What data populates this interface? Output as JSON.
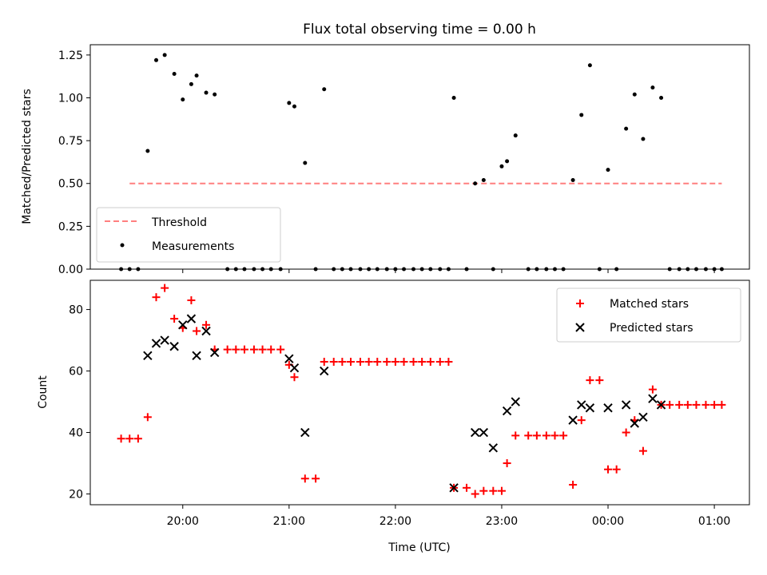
{
  "title": "Flux total observing time = 0.00 h",
  "colors": {
    "threshold": "#ff7f7f",
    "measurement": "#000000",
    "matched": "#ff0000",
    "predicted": "#000000"
  },
  "chart_data": [
    {
      "type": "scatter",
      "name": "ratio",
      "ylabel": "Matched/Predicted stars",
      "xlim": [
        19.13,
        25.33
      ],
      "ylim": [
        0,
        1.31
      ],
      "yticks": [
        0.0,
        0.25,
        0.5,
        0.75,
        1.0,
        1.25
      ],
      "ytick_labels": [
        "0.00",
        "0.25",
        "0.50",
        "0.75",
        "1.00",
        "1.25"
      ],
      "legend": {
        "position": "lower-left",
        "threshold_label": "Threshold",
        "measurements_label": "Measurements"
      },
      "threshold": {
        "value": 0.5,
        "x_range": [
          19.5,
          25.07
        ]
      },
      "series": [
        {
          "name": "Measurements",
          "x": [
            19.42,
            19.5,
            19.58,
            19.67,
            19.75,
            19.83,
            19.92,
            20.0,
            20.08,
            20.13,
            20.22,
            20.3,
            20.42,
            20.5,
            20.58,
            20.67,
            20.75,
            20.83,
            20.92,
            21.0,
            21.05,
            21.15,
            21.25,
            21.33,
            21.42,
            21.5,
            21.58,
            21.67,
            21.75,
            21.83,
            21.92,
            22.0,
            22.08,
            22.17,
            22.25,
            22.33,
            22.42,
            22.5,
            22.55,
            22.67,
            22.75,
            22.83,
            22.92,
            23.0,
            23.05,
            23.13,
            23.25,
            23.33,
            23.42,
            23.5,
            23.58,
            23.67,
            23.75,
            23.83,
            23.92,
            24.0,
            24.08,
            24.17,
            24.25,
            24.33,
            24.42,
            24.5,
            24.58,
            24.67,
            24.75,
            24.83,
            24.92,
            25.0,
            25.07
          ],
          "y": [
            0,
            0,
            0,
            0.69,
            1.22,
            1.25,
            1.14,
            0.99,
            1.08,
            1.13,
            1.03,
            1.02,
            0,
            0,
            0,
            0,
            0,
            0,
            0,
            0.97,
            0.95,
            0.62,
            0,
            1.05,
            0,
            0,
            0,
            0,
            0,
            0,
            0,
            0,
            0,
            0,
            0,
            0,
            0,
            0,
            1.0,
            0,
            0.5,
            0.52,
            0,
            0.6,
            0.63,
            0.78,
            0,
            0,
            0,
            0,
            0,
            0.52,
            0.9,
            1.19,
            0,
            0.58,
            0,
            0.82,
            1.02,
            0.76,
            1.06,
            1.0,
            0,
            0,
            0,
            0,
            0,
            0,
            0
          ]
        }
      ]
    },
    {
      "type": "scatter",
      "name": "counts",
      "xlabel": "Time (UTC)",
      "ylabel": "Count",
      "xlim": [
        19.13,
        25.33
      ],
      "ylim": [
        16.5,
        89.5
      ],
      "yticks": [
        20,
        40,
        60,
        80
      ],
      "ytick_labels": [
        "20",
        "40",
        "60",
        "80"
      ],
      "xticks": [
        20,
        21,
        22,
        23,
        24,
        25
      ],
      "xtick_labels": [
        "20:00",
        "21:00",
        "22:00",
        "23:00",
        "00:00",
        "01:00"
      ],
      "legend": {
        "position": "upper-right"
      },
      "series": [
        {
          "name": "Matched stars",
          "x": [
            19.42,
            19.5,
            19.58,
            19.67,
            19.75,
            19.83,
            19.92,
            20.0,
            20.08,
            20.13,
            20.22,
            20.3,
            20.42,
            20.5,
            20.58,
            20.67,
            20.75,
            20.83,
            20.92,
            21.0,
            21.05,
            21.15,
            21.25,
            21.33,
            21.42,
            21.5,
            21.58,
            21.67,
            21.75,
            21.83,
            21.92,
            22.0,
            22.08,
            22.17,
            22.25,
            22.33,
            22.42,
            22.5,
            22.55,
            22.67,
            22.75,
            22.83,
            22.92,
            23.0,
            23.05,
            23.13,
            23.25,
            23.33,
            23.42,
            23.5,
            23.58,
            23.67,
            23.75,
            23.83,
            23.92,
            24.0,
            24.08,
            24.17,
            24.25,
            24.33,
            24.42,
            24.5,
            24.58,
            24.67,
            24.75,
            24.83,
            24.92,
            25.0,
            25.07
          ],
          "y": [
            38,
            38,
            38,
            45,
            84,
            87,
            77,
            74,
            83,
            73,
            75,
            67,
            67,
            67,
            67,
            67,
            67,
            67,
            67,
            62,
            58,
            25,
            25,
            63,
            63,
            63,
            63,
            63,
            63,
            63,
            63,
            63,
            63,
            63,
            63,
            63,
            63,
            63,
            22,
            22,
            20,
            21,
            21,
            21,
            30,
            39,
            39,
            39,
            39,
            39,
            39,
            23,
            44,
            57,
            57,
            28,
            28,
            40,
            44,
            34,
            54,
            49,
            49,
            49,
            49,
            49,
            49,
            49,
            49
          ]
        },
        {
          "name": "Predicted stars",
          "x": [
            19.67,
            19.75,
            19.83,
            19.92,
            20.0,
            20.08,
            20.13,
            20.22,
            20.3,
            21.0,
            21.05,
            21.15,
            21.33,
            22.55,
            22.75,
            22.83,
            22.92,
            23.05,
            23.13,
            23.67,
            23.75,
            23.83,
            24.0,
            24.17,
            24.25,
            24.33,
            24.42,
            24.5
          ],
          "y": [
            65,
            69,
            70,
            68,
            75,
            77,
            65,
            73,
            66,
            64,
            61,
            40,
            60,
            22,
            40,
            40,
            35,
            47,
            50,
            44,
            49,
            48,
            48,
            49,
            43,
            45,
            51,
            49
          ]
        }
      ]
    }
  ]
}
